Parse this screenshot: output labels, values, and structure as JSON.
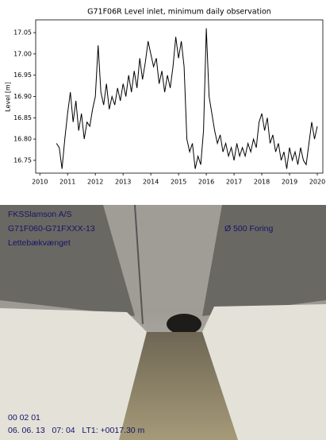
{
  "chart_data": {
    "type": "line",
    "title": "G71F06R Level inlet, minimum daily observation",
    "y_label": "Level [m]",
    "color": "#000000",
    "x": [
      2010.6,
      2010.7,
      2010.8,
      2010.9,
      2011.0,
      2011.1,
      2011.2,
      2011.3,
      2011.4,
      2011.5,
      2011.6,
      2011.7,
      2011.8,
      2011.9,
      2012.0,
      2012.1,
      2012.2,
      2012.3,
      2012.4,
      2012.5,
      2012.6,
      2012.7,
      2012.8,
      2012.9,
      2013.0,
      2013.1,
      2013.2,
      2013.3,
      2013.4,
      2013.5,
      2013.6,
      2013.7,
      2013.8,
      2013.9,
      2014.0,
      2014.1,
      2014.2,
      2014.3,
      2014.4,
      2014.5,
      2014.6,
      2014.7,
      2014.8,
      2014.9,
      2015.0,
      2015.1,
      2015.2,
      2015.3,
      2015.4,
      2015.5,
      2015.6,
      2015.7,
      2015.8,
      2015.9,
      2016.0,
      2016.1,
      2016.2,
      2016.3,
      2016.4,
      2016.5,
      2016.6,
      2016.7,
      2016.8,
      2016.9,
      2017.0,
      2017.1,
      2017.2,
      2017.3,
      2017.4,
      2017.5,
      2017.6,
      2017.7,
      2017.8,
      2017.9,
      2018.0,
      2018.1,
      2018.2,
      2018.3,
      2018.4,
      2018.5,
      2018.6,
      2018.7,
      2018.8,
      2018.9,
      2019.0,
      2019.1,
      2019.2,
      2019.3,
      2019.4,
      2019.5,
      2019.6,
      2019.7,
      2019.8,
      2019.9,
      2020.0
    ],
    "values": [
      16.79,
      16.78,
      16.73,
      16.8,
      16.86,
      16.91,
      16.84,
      16.89,
      16.82,
      16.86,
      16.8,
      16.84,
      16.83,
      16.87,
      16.9,
      17.02,
      16.91,
      16.88,
      16.93,
      16.87,
      16.9,
      16.88,
      16.92,
      16.89,
      16.93,
      16.9,
      16.95,
      16.91,
      16.96,
      16.92,
      16.99,
      16.94,
      16.98,
      17.03,
      17.0,
      16.97,
      16.99,
      16.93,
      16.96,
      16.91,
      16.95,
      16.92,
      16.97,
      17.04,
      16.99,
      17.03,
      16.97,
      16.8,
      16.77,
      16.79,
      16.73,
      16.76,
      16.74,
      16.82,
      17.06,
      16.9,
      16.86,
      16.82,
      16.79,
      16.81,
      16.77,
      16.79,
      16.76,
      16.78,
      16.75,
      16.79,
      16.76,
      16.78,
      16.76,
      16.79,
      16.77,
      16.8,
      16.78,
      16.84,
      16.86,
      16.82,
      16.85,
      16.79,
      16.81,
      16.77,
      16.79,
      16.75,
      16.77,
      16.73,
      16.78,
      16.75,
      16.77,
      16.74,
      16.78,
      16.75,
      16.74,
      16.79,
      16.84,
      16.8,
      16.83
    ],
    "xlim": [
      2009.85,
      2020.2
    ],
    "xticks": [
      2010,
      2011,
      2012,
      2013,
      2014,
      2015,
      2016,
      2017,
      2018,
      2019,
      2020
    ],
    "ylim": [
      16.72,
      17.08
    ],
    "yticks": [
      16.75,
      {
        "value": 16.8,
        "label": "16.80"
      },
      16.85,
      {
        "value": 16.9,
        "label": "16.90"
      },
      16.95,
      {
        "value": 17,
        "label": "17.00"
      },
      17.05
    ]
  },
  "photo_overlay": {
    "lines": [
      "FKSSlamson A/S",
      "G71F060-G71FXXX-13",
      "Lettebækvænget",
      "Ø 500  Foring",
      "00 02 01",
      "06. 06. 13   07: 04   LT1: +0017.30 m"
    ]
  }
}
